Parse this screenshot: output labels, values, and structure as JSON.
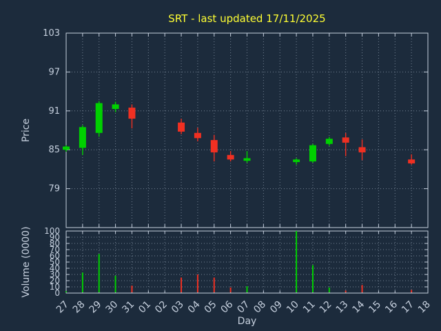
{
  "chart_data": {
    "type": "candlestick",
    "title": "SRT - last updated 17/11/2025",
    "x_axis": {
      "label": "Day",
      "ticks": [
        "27",
        "28",
        "29",
        "30",
        "31",
        "01",
        "02",
        "03",
        "04",
        "05",
        "06",
        "07",
        "08",
        "09",
        "10",
        "11",
        "12",
        "13",
        "14",
        "15",
        "16",
        "17",
        "18"
      ]
    },
    "price_axis": {
      "label": "Price",
      "ticks": [
        79,
        85,
        91,
        97,
        103
      ],
      "range": [
        73,
        103
      ]
    },
    "volume_axis": {
      "label": "Volume (0000)",
      "ticks": [
        0,
        10,
        20,
        30,
        40,
        50,
        60,
        70,
        80,
        90,
        100
      ],
      "range": [
        0,
        100
      ]
    },
    "candles": [
      {
        "day": "27",
        "open": 85.0,
        "high": 85.7,
        "low": 84.7,
        "close": 85.5,
        "volume": 3
      },
      {
        "day": "28",
        "open": 85.3,
        "high": 88.8,
        "low": 84.2,
        "close": 88.5,
        "volume": 33
      },
      {
        "day": "29",
        "open": 87.6,
        "high": 92.5,
        "low": 87.0,
        "close": 92.2,
        "volume": 63
      },
      {
        "day": "30",
        "open": 91.3,
        "high": 92.4,
        "low": 90.8,
        "close": 92.0,
        "volume": 28
      },
      {
        "day": "31",
        "open": 91.5,
        "high": 92.0,
        "low": 88.3,
        "close": 89.8,
        "volume": 12
      },
      {
        "day": "03",
        "open": 89.2,
        "high": 89.8,
        "low": 87.4,
        "close": 87.8,
        "volume": 25
      },
      {
        "day": "04",
        "open": 87.6,
        "high": 88.4,
        "low": 86.3,
        "close": 86.8,
        "volume": 30
      },
      {
        "day": "05",
        "open": 86.5,
        "high": 87.3,
        "low": 83.2,
        "close": 84.6,
        "volume": 25
      },
      {
        "day": "06",
        "open": 84.2,
        "high": 84.8,
        "low": 83.2,
        "close": 83.5,
        "volume": 9
      },
      {
        "day": "07",
        "open": 83.3,
        "high": 84.8,
        "low": 83.0,
        "close": 83.7,
        "volume": 11
      },
      {
        "day": "10",
        "open": 83.1,
        "high": 83.7,
        "low": 82.7,
        "close": 83.5,
        "volume": 100
      },
      {
        "day": "11",
        "open": 83.2,
        "high": 85.9,
        "low": 83.0,
        "close": 85.7,
        "volume": 45
      },
      {
        "day": "12",
        "open": 85.9,
        "high": 87.0,
        "low": 85.6,
        "close": 86.7,
        "volume": 9
      },
      {
        "day": "13",
        "open": 86.9,
        "high": 87.6,
        "low": 84.0,
        "close": 86.1,
        "volume": 4
      },
      {
        "day": "14",
        "open": 85.4,
        "high": 86.6,
        "low": 83.4,
        "close": 84.6,
        "volume": 13
      },
      {
        "day": "17",
        "open": 83.5,
        "high": 84.3,
        "low": 82.7,
        "close": 82.9,
        "volume": 5
      }
    ],
    "colors": {
      "background": "#1c2b3c",
      "up": "#00d000",
      "down": "#f03022",
      "axis": "#c6d0de",
      "grid": "#93a1b2",
      "title": "#ffff33"
    }
  }
}
